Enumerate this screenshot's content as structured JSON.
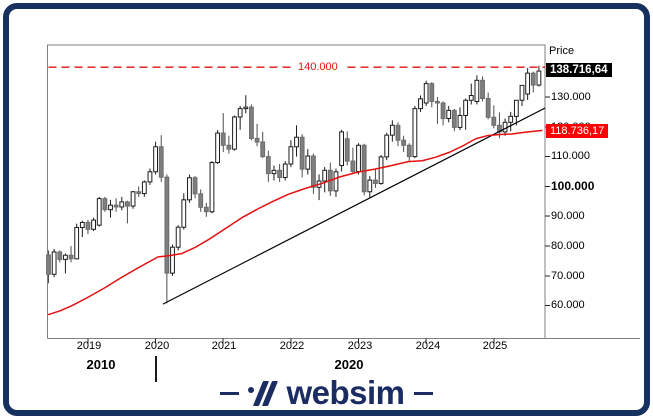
{
  "colors": {
    "navy_frame": "#16305f",
    "navy_logo": "#1b2c62",
    "red_line": "#e60f0f",
    "red_marker_bg": "#ff0000",
    "last_price_marker_bg": "#000000",
    "down_candle_fill": "#7f7f7f",
    "up_candle_fill": "#ffffff",
    "plot_border": "#808080"
  },
  "chart": {
    "price_axis": {
      "title": "Price",
      "ticks": [
        {
          "label": "130.000",
          "v": 130,
          "bold": false
        },
        {
          "label": "120.000",
          "v": 120,
          "bold": false
        },
        {
          "label": "110.000",
          "v": 110,
          "bold": false
        },
        {
          "label": "100.000",
          "v": 100,
          "bold": true
        },
        {
          "label": "90.000",
          "v": 90,
          "bold": false
        },
        {
          "label": "80.000",
          "v": 80,
          "bold": false
        },
        {
          "label": "70.000",
          "v": 70,
          "bold": false
        },
        {
          "label": "60.000",
          "v": 60,
          "bold": false
        }
      ],
      "markers": [
        {
          "name": "last-price",
          "label": "138.716,64",
          "v": 138.71664,
          "bg": "black"
        },
        {
          "name": "indicator-value",
          "label": "118.736,17",
          "v": 118.73617,
          "bg": "red"
        }
      ]
    },
    "level_line": {
      "label": "140.000",
      "v": 140,
      "style": "dashed",
      "color": "red"
    },
    "time_axis": {
      "years": [
        "2019",
        "2020",
        "2021",
        "2022",
        "2023",
        "2024",
        "2025"
      ],
      "decade_labels": [
        "2010",
        "2020"
      ]
    }
  },
  "chart_data": {
    "type": "candlestick",
    "timeframe": "monthly",
    "start_month": "2018-06",
    "unit": "thousands (axis shows 60.000 - 140.000)",
    "y_range": [
      52,
      147
    ],
    "grid": false,
    "candles": [
      [
        77,
        78.5,
        67.5,
        70.5
      ],
      [
        70.5,
        79,
        69.5,
        78
      ],
      [
        78,
        78.5,
        74.5,
        75.5
      ],
      [
        75.5,
        77.5,
        70.8,
        76.9
      ],
      [
        76.9,
        80,
        74.5,
        75.7
      ],
      [
        75.7,
        87.5,
        75.5,
        86.2
      ],
      [
        86.2,
        88.5,
        83,
        87.9
      ],
      [
        87.9,
        88.8,
        84,
        85.6
      ],
      [
        85.6,
        89.5,
        85,
        88.7
      ],
      [
        87,
        96.5,
        86.5,
        95.9
      ],
      [
        95.9,
        96.5,
        91.5,
        92.2
      ],
      [
        92.2,
        95.5,
        89.5,
        93.7
      ],
      [
        93.7,
        96,
        91.5,
        93.1
      ],
      [
        93.1,
        96.5,
        92,
        94.8
      ],
      [
        94.8,
        95.2,
        87.6,
        93.4
      ],
      [
        93.4,
        98.5,
        92.5,
        98.2
      ],
      [
        98.2,
        100,
        96.5,
        97.6
      ],
      [
        97.6,
        102,
        96.5,
        101.5
      ],
      [
        101.5,
        106,
        100.5,
        104.9
      ],
      [
        104.9,
        115,
        104,
        113.3
      ],
      [
        113.3,
        117.2,
        101.5,
        103.1
      ],
      [
        103.1,
        104,
        60.8,
        70.9
      ],
      [
        70.9,
        80.5,
        70,
        79.6
      ],
      [
        79.6,
        87,
        78.5,
        86.3
      ],
      [
        86.3,
        97.7,
        85.5,
        95.5
      ],
      [
        95.5,
        104,
        94.5,
        102.9
      ],
      [
        102.9,
        103.5,
        96,
        97.5
      ],
      [
        97.5,
        99,
        91.5,
        93
      ],
      [
        93,
        94.5,
        89.8,
        91.5
      ],
      [
        91.5,
        108.5,
        91,
        108
      ],
      [
        108,
        118.9,
        107.5,
        117.9
      ],
      [
        117.9,
        124.6,
        111.5,
        113.8
      ],
      [
        113.8,
        117,
        111,
        112.5
      ],
      [
        112.5,
        123.8,
        112,
        123.3
      ],
      [
        123.3,
        127,
        119,
        126.1
      ],
      [
        126.1,
        130.6,
        124.5,
        126.6
      ],
      [
        126.6,
        127.5,
        115.5,
        116.1
      ],
      [
        116.1,
        121,
        113.5,
        114.9
      ],
      [
        114.9,
        118.3,
        109.5,
        110
      ],
      [
        110,
        112,
        101.5,
        104.3
      ],
      [
        104.3,
        107,
        102,
        105.4
      ],
      [
        105.4,
        107.5,
        101.5,
        103
      ],
      [
        103,
        108.5,
        102,
        107.5
      ],
      [
        107.5,
        115.5,
        106.5,
        113.3
      ],
      [
        113.3,
        120.5,
        110,
        116.5
      ],
      [
        116.5,
        117.5,
        103,
        105.8
      ],
      [
        105.8,
        112.5,
        104,
        110.2
      ],
      [
        110.2,
        111,
        97.5,
        99.7
      ],
      [
        99.7,
        104,
        95.4,
        101.8
      ],
      [
        101.8,
        106.5,
        98,
        105.4
      ],
      [
        105.4,
        108,
        96.8,
        98.5
      ],
      [
        98.5,
        106,
        96.5,
        104.9
      ],
      [
        107,
        119,
        105,
        118.3
      ],
      [
        116,
        118.5,
        107,
        108.5
      ],
      [
        108.5,
        113,
        104.5,
        105
      ],
      [
        105,
        114.5,
        104,
        113.8
      ],
      [
        113.8,
        114.3,
        97,
        98.2
      ],
      [
        98.2,
        103.5,
        96,
        102.1
      ],
      [
        102.1,
        106,
        99.5,
        101
      ],
      [
        101,
        110.5,
        100.5,
        109.9
      ],
      [
        109.9,
        118,
        108.8,
        117.2
      ],
      [
        117.2,
        122.2,
        115,
        120.5
      ],
      [
        120.5,
        121.5,
        113.5,
        115.5
      ],
      [
        115.5,
        117,
        111.5,
        113.8
      ],
      [
        113.8,
        114.5,
        108.5,
        110
      ],
      [
        110,
        127,
        109.5,
        126.1
      ],
      [
        126.1,
        130.5,
        125,
        129.4
      ],
      [
        128,
        135.5,
        127,
        134.5
      ],
      [
        134.5,
        135,
        126.5,
        128.5
      ],
      [
        128.5,
        130,
        121,
        128
      ],
      [
        128,
        128.5,
        120.5,
        122.8
      ],
      [
        122.8,
        127,
        121.5,
        125.5
      ],
      [
        125.5,
        126,
        118.5,
        119.8
      ],
      [
        119.8,
        126.5,
        118.9,
        123.8
      ],
      [
        123.8,
        129.5,
        119,
        128.9
      ],
      [
        128.9,
        134.5,
        127.5,
        130.5
      ],
      [
        128.5,
        137.3,
        127.5,
        135.6
      ],
      [
        135.6,
        136.9,
        128.5,
        129.5
      ],
      [
        129.5,
        131.5,
        122.5,
        123.2
      ],
      [
        123.2,
        127.2,
        119.5,
        120.5
      ],
      [
        120.5,
        124.8,
        116.2,
        118.3
      ],
      [
        118.3,
        122.8,
        117,
        121.5
      ],
      [
        121.5,
        125,
        118.5,
        123.5
      ],
      [
        123.5,
        129,
        120.5,
        128.9
      ],
      [
        128.9,
        134,
        127,
        133.9
      ],
      [
        131,
        139.7,
        129,
        138
      ],
      [
        138,
        138.5,
        131.5,
        134
      ],
      [
        134,
        140.5,
        133.5,
        138.7
      ]
    ],
    "overlays": {
      "moving_average": {
        "color": "#e60f0f",
        "points": [
          [
            0,
            57
          ],
          [
            2,
            58.2
          ],
          [
            4.2,
            60
          ],
          [
            7,
            62.8
          ],
          [
            10,
            66
          ],
          [
            13,
            69.5
          ],
          [
            16.2,
            73
          ],
          [
            19.4,
            76.3
          ],
          [
            21.6,
            76.8
          ],
          [
            23.7,
            77.5
          ],
          [
            26,
            79.5
          ],
          [
            28.7,
            82.5
          ],
          [
            31.5,
            86
          ],
          [
            34.3,
            89.5
          ],
          [
            37.2,
            92.5
          ],
          [
            39.6,
            94.8
          ],
          [
            42.5,
            97.3
          ],
          [
            45.5,
            99.3
          ],
          [
            48.5,
            101
          ],
          [
            51.7,
            103.2
          ],
          [
            54.9,
            104.8
          ],
          [
            57.9,
            105.8
          ],
          [
            60.9,
            107
          ],
          [
            63.8,
            108.3
          ],
          [
            66.3,
            108.6
          ],
          [
            68.7,
            109.8
          ],
          [
            71.2,
            111.5
          ],
          [
            73.7,
            113.8
          ],
          [
            75.8,
            116
          ],
          [
            78,
            117.1
          ],
          [
            80.1,
            117.4
          ],
          [
            82.2,
            117.6
          ],
          [
            84.7,
            118.2
          ],
          [
            87.5,
            118.74
          ]
        ]
      },
      "trendline": {
        "color": "#000000",
        "points": [
          [
            20.3,
            60.5
          ],
          [
            88.1,
            126.3
          ]
        ]
      },
      "resistance_level": {
        "color": "#e60f0f",
        "v": 140,
        "style": "dashed",
        "label": "140.000"
      }
    }
  },
  "footer": {
    "wordmark": "websim",
    "logo_icon": "websim-slashes-icon"
  }
}
